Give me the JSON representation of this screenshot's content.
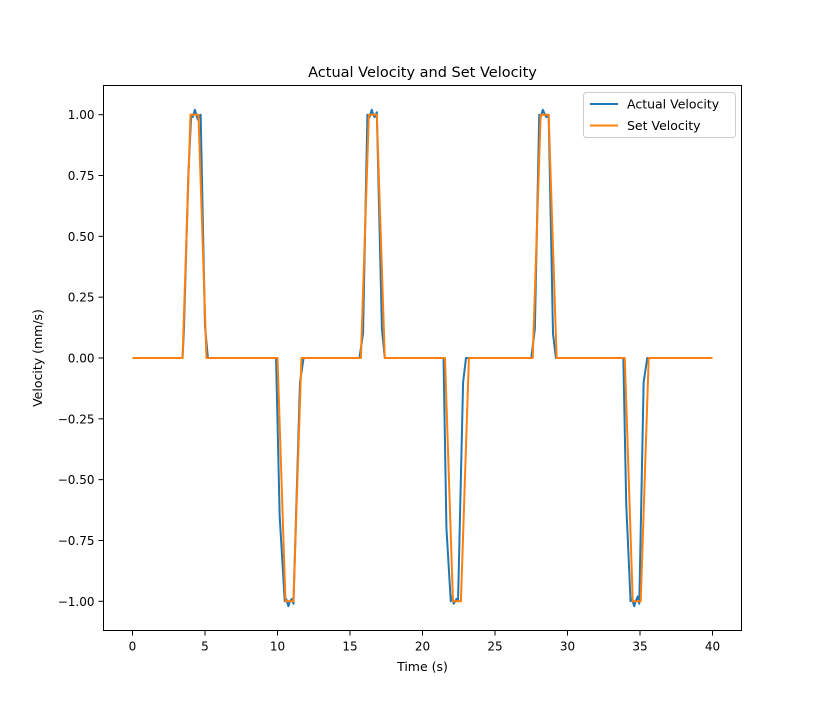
{
  "chart_data": {
    "type": "line",
    "title": "Actual Velocity and Set Velocity",
    "xlabel": "Time (s)",
    "ylabel": "Velocity (mm/s)",
    "xlim": [
      -2,
      42
    ],
    "ylim": [
      -1.12,
      1.12
    ],
    "xticks": [
      0,
      5,
      10,
      15,
      20,
      25,
      30,
      35,
      40
    ],
    "yticks": [
      1.0,
      0.75,
      0.5,
      0.25,
      0.0,
      -0.25,
      -0.5,
      -0.75,
      -1.0
    ],
    "xtick_labels": [
      "0",
      "5",
      "10",
      "15",
      "20",
      "25",
      "30",
      "35",
      "40"
    ],
    "ytick_labels": [
      "1.00",
      "0.75",
      "0.50",
      "0.25",
      "0.00",
      "−0.25",
      "−0.50",
      "−0.75",
      "−1.00"
    ],
    "grid": false,
    "legend_position": "top-right",
    "series": [
      {
        "name": "Actual Velocity",
        "color": "#1f77b4",
        "x": [
          0,
          3.45,
          3.55,
          3.85,
          4.05,
          4.15,
          4.3,
          4.4,
          4.5,
          4.7,
          5.0,
          5.2,
          9.9,
          10.15,
          10.5,
          10.6,
          10.75,
          10.85,
          11.0,
          11.1,
          11.55,
          11.8,
          15.65,
          15.9,
          16.2,
          16.35,
          16.5,
          16.6,
          16.7,
          16.85,
          17.2,
          17.4,
          21.45,
          21.65,
          21.95,
          22.05,
          22.15,
          22.25,
          22.35,
          22.45,
          22.8,
          23.0,
          27.5,
          27.75,
          28.05,
          28.15,
          28.3,
          28.45,
          28.55,
          28.7,
          29.0,
          29.2,
          33.85,
          34.05,
          34.35,
          34.45,
          34.6,
          34.7,
          34.85,
          34.95,
          35.25,
          35.5,
          40
        ],
        "y": [
          0.0,
          0.0,
          0.12,
          0.75,
          1.0,
          0.99,
          1.02,
          1.0,
          0.98,
          1.0,
          0.13,
          0.0,
          0.0,
          -0.65,
          -1.0,
          -0.99,
          -1.02,
          -1.0,
          -0.99,
          -1.01,
          -0.1,
          0.0,
          0.0,
          0.1,
          1.0,
          0.99,
          1.02,
          1.0,
          0.99,
          1.01,
          0.12,
          0.0,
          0.0,
          -0.7,
          -1.0,
          -0.98,
          -1.01,
          -1.0,
          -0.99,
          -1.0,
          -0.1,
          0.0,
          0.0,
          0.12,
          1.0,
          0.99,
          1.02,
          1.0,
          0.99,
          1.0,
          0.1,
          0.0,
          0.0,
          -0.6,
          -1.0,
          -0.99,
          -1.02,
          -1.0,
          -0.98,
          -1.01,
          -0.1,
          0.0,
          0.0
        ]
      },
      {
        "name": "Set Velocity",
        "color": "#ff7f0e",
        "x": [
          0,
          3.45,
          4.0,
          4.55,
          5.1,
          10.0,
          10.55,
          11.1,
          11.65,
          15.75,
          16.3,
          16.85,
          17.4,
          21.55,
          22.1,
          22.65,
          23.2,
          27.6,
          28.15,
          28.7,
          29.25,
          33.95,
          34.5,
          35.05,
          35.6,
          40
        ],
        "y": [
          0,
          0,
          1,
          1,
          0,
          0,
          -1,
          -1,
          0,
          0,
          1,
          1,
          0,
          0,
          -1,
          -1,
          0,
          0,
          1,
          1,
          0,
          0,
          -1,
          -1,
          0,
          0
        ]
      }
    ]
  }
}
